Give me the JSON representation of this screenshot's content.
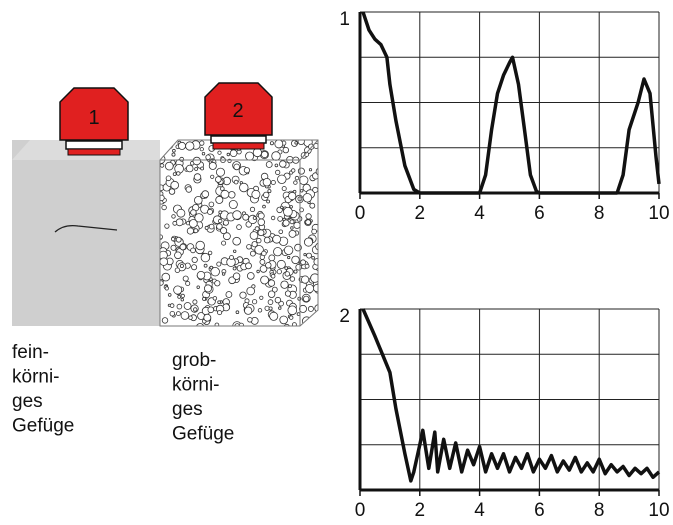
{
  "probes": [
    {
      "label": "1"
    },
    {
      "label": "2"
    }
  ],
  "materials": [
    {
      "lines": [
        "fein-",
        "körni-",
        "ges",
        "Gefüge"
      ]
    },
    {
      "lines": [
        "grob-",
        "körni-",
        "ges",
        "Gefüge"
      ]
    }
  ],
  "chart_data": [
    {
      "type": "line",
      "title": "1",
      "color": "#111",
      "x": [
        0.1,
        0.3,
        0.5,
        0.7,
        0.9,
        1.0,
        1.2,
        1.5,
        1.8,
        2.0,
        4.0,
        4.2,
        4.4,
        4.6,
        4.8,
        5.0,
        5.1,
        5.3,
        5.5,
        5.7,
        5.9,
        6.0,
        8.6,
        8.8,
        9.0,
        9.3,
        9.5,
        9.7,
        9.9,
        10.0
      ],
      "values": [
        1,
        0.9,
        0.85,
        0.82,
        0.75,
        0.6,
        0.4,
        0.15,
        0.02,
        0,
        0,
        0.1,
        0.35,
        0.55,
        0.65,
        0.72,
        0.75,
        0.6,
        0.35,
        0.1,
        0.01,
        0,
        0,
        0.1,
        0.35,
        0.5,
        0.63,
        0.55,
        0.2,
        0.05
      ],
      "xlim": [
        0,
        10
      ],
      "xticks": [
        0,
        2,
        4,
        6,
        8,
        10
      ],
      "ylim": [
        0,
        1
      ],
      "ygrid": [
        0,
        0.25,
        0.5,
        0.75,
        1
      ],
      "grid": true
    },
    {
      "type": "line",
      "title": "2",
      "color": "#111",
      "x": [
        0.1,
        0.5,
        1.0,
        1.2,
        1.5,
        1.7,
        1.8,
        2.0,
        2.1,
        2.3,
        2.5,
        2.6,
        2.8,
        3.0,
        3.2,
        3.4,
        3.6,
        3.8,
        4.0,
        4.2,
        4.4,
        4.6,
        4.8,
        5.0,
        5.2,
        5.4,
        5.6,
        5.8,
        6.0,
        6.2,
        6.4,
        6.6,
        6.8,
        7.0,
        7.2,
        7.4,
        7.6,
        7.8,
        8.0,
        8.2,
        8.4,
        8.6,
        8.8,
        9.0,
        9.2,
        9.4,
        9.6,
        9.8,
        10.0
      ],
      "values": [
        1,
        0.85,
        0.65,
        0.45,
        0.2,
        0.05,
        0.1,
        0.25,
        0.33,
        0.12,
        0.32,
        0.1,
        0.28,
        0.12,
        0.26,
        0.1,
        0.22,
        0.14,
        0.24,
        0.1,
        0.2,
        0.12,
        0.2,
        0.1,
        0.18,
        0.12,
        0.2,
        0.1,
        0.17,
        0.12,
        0.19,
        0.1,
        0.16,
        0.11,
        0.18,
        0.1,
        0.15,
        0.1,
        0.17,
        0.09,
        0.14,
        0.1,
        0.13,
        0.08,
        0.12,
        0.09,
        0.12,
        0.07,
        0.1
      ],
      "xlim": [
        0,
        10
      ],
      "xticks": [
        0,
        2,
        4,
        6,
        8,
        10
      ],
      "ylim": [
        0,
        1
      ],
      "ygrid": [
        0,
        0.25,
        0.5,
        0.75,
        1
      ],
      "grid": true
    }
  ]
}
